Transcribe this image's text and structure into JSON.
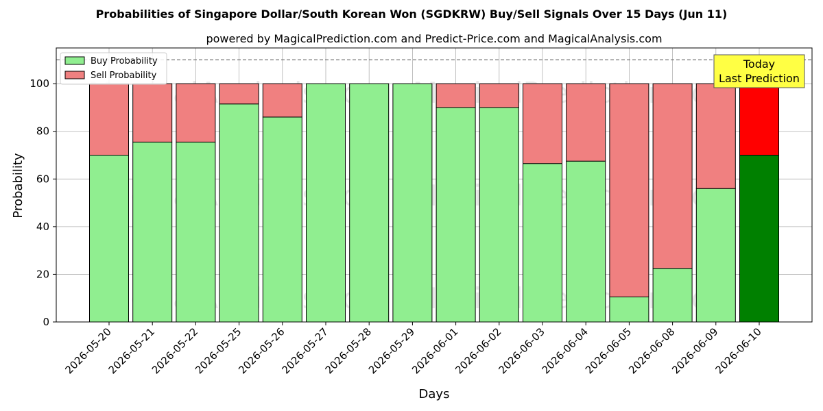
{
  "chart_data": {
    "type": "bar",
    "stacked": true,
    "title": "Probabilities of Singapore Dollar/South Korean Won (SGDKRW) Buy/Sell Signals Over 15 Days (Jun 11)",
    "subtitle": "powered by MagicalPrediction.com and Predict-Price.com and MagicalAnalysis.com",
    "xlabel": "Days",
    "ylabel": "Probability",
    "ylim": [
      0,
      115
    ],
    "yticks": [
      0,
      20,
      40,
      60,
      80,
      100
    ],
    "reference_line": 110,
    "grid": true,
    "legend_position": "top-left",
    "categories": [
      "2026-05-20",
      "2026-05-21",
      "2026-05-22",
      "2026-05-25",
      "2026-05-26",
      "2026-05-27",
      "2026-05-28",
      "2026-05-29",
      "2026-06-01",
      "2026-06-02",
      "2026-06-03",
      "2026-06-04",
      "2026-06-05",
      "2026-06-08",
      "2026-06-09",
      "2026-06-10"
    ],
    "series": [
      {
        "name": "Buy Probability",
        "color": "#90ee90",
        "highlight_color": "#008000",
        "values": [
          70,
          75.5,
          75.5,
          91.5,
          86,
          100,
          100,
          100,
          90,
          90,
          66.5,
          67.5,
          10.5,
          22.5,
          56,
          70
        ]
      },
      {
        "name": "Sell Probability",
        "color": "#f08080",
        "highlight_color": "#ff0000",
        "values": [
          30,
          24.5,
          24.5,
          8.5,
          14,
          0,
          0,
          0,
          10,
          10,
          33.5,
          32.5,
          89.5,
          77.5,
          44,
          30
        ]
      }
    ],
    "highlight_index": 15,
    "annotation": {
      "line1": "Today",
      "line2": "Last Prediction",
      "background": "#ffff44"
    },
    "watermarks": [
      "MagicalAnalysis.com",
      "MagicalPrediction.com"
    ]
  }
}
